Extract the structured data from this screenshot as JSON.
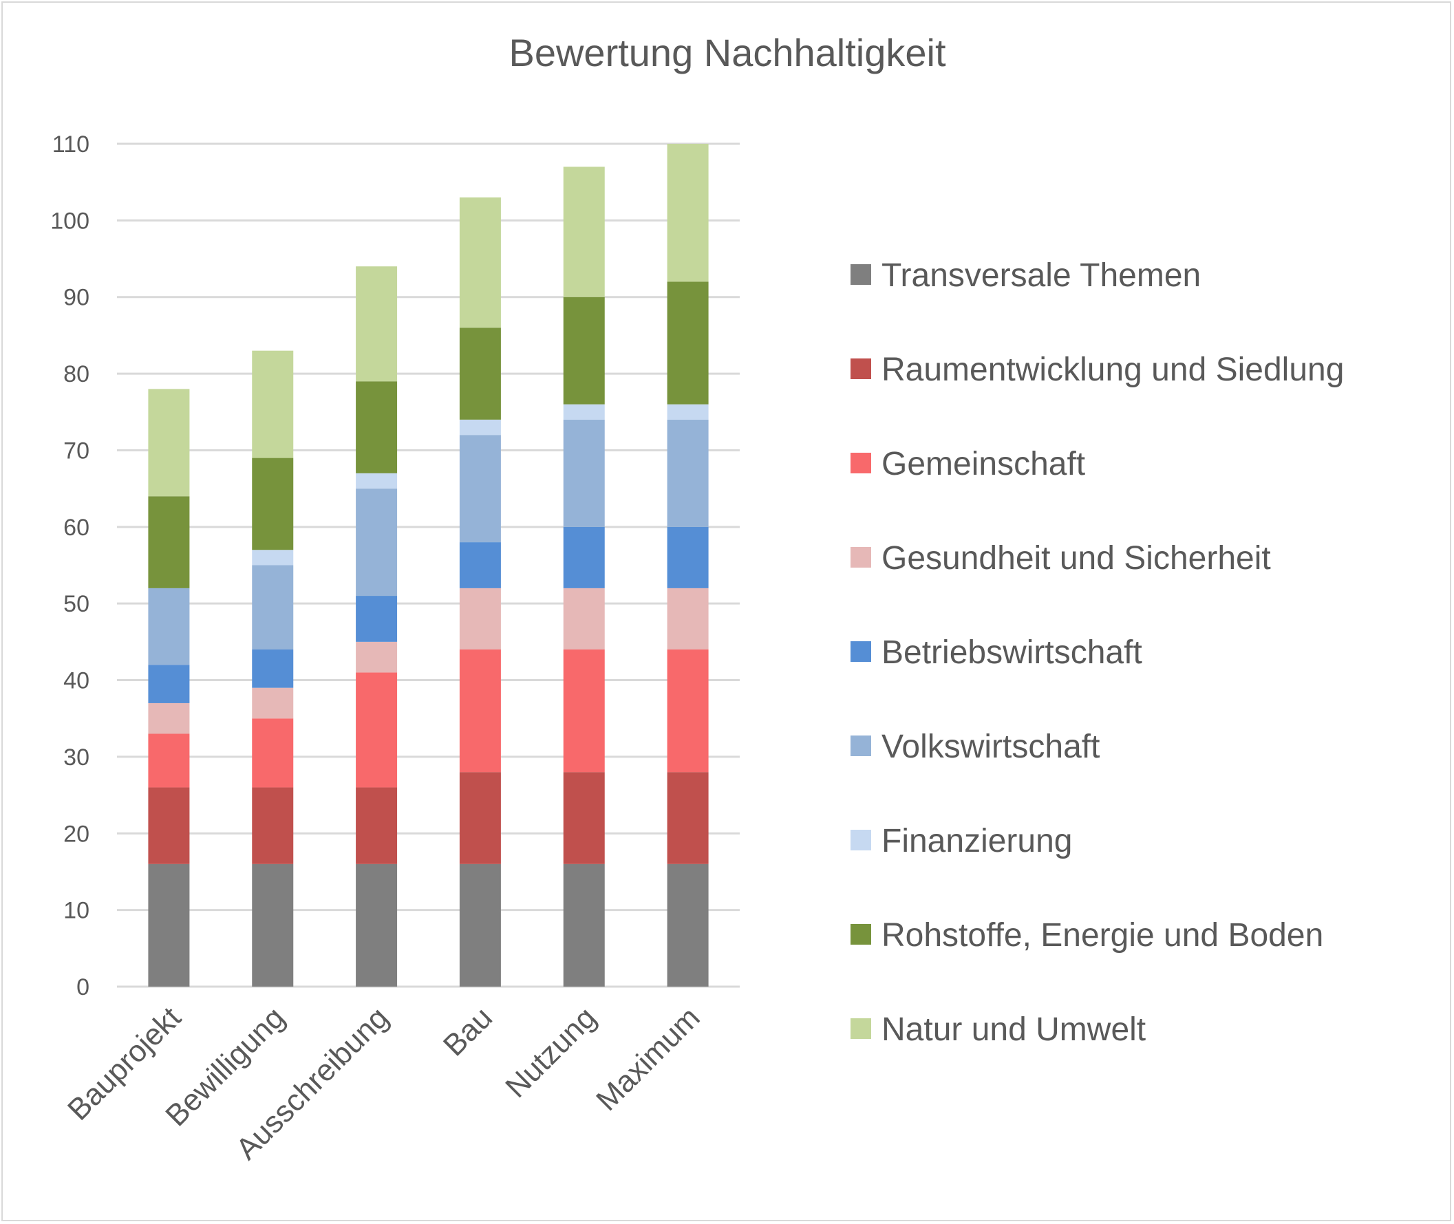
{
  "chart_data": {
    "type": "bar",
    "stacked": true,
    "title": "Bewertung Nachhaltigkeit",
    "xlabel": "",
    "ylabel": "",
    "ylim": [
      0,
      110
    ],
    "yticks": [
      0,
      10,
      20,
      30,
      40,
      50,
      60,
      70,
      80,
      90,
      100,
      110
    ],
    "grid": true,
    "legend_position": "right",
    "categories": [
      "Bauprojekt",
      "Bewilligung",
      "Ausschreibung",
      "Bau",
      "Nutzung",
      "Maximum"
    ],
    "series": [
      {
        "name": "Transversale Themen",
        "color": "#7f7f7f",
        "values": [
          16,
          16,
          16,
          16,
          16,
          16
        ]
      },
      {
        "name": "Raumentwicklung und Siedlung",
        "color": "#c0504d",
        "values": [
          10,
          10,
          10,
          12,
          12,
          12
        ]
      },
      {
        "name": "Gemeinschaft",
        "color": "#f8696b",
        "values": [
          7,
          9,
          15,
          16,
          16,
          16
        ]
      },
      {
        "name": "Gesundheit und Sicherheit",
        "color": "#e6b8b7",
        "values": [
          4,
          4,
          4,
          8,
          8,
          8
        ]
      },
      {
        "name": "Betriebswirtschaft",
        "color": "#558ed5",
        "values": [
          5,
          5,
          6,
          6,
          8,
          8
        ]
      },
      {
        "name": "Volkswirtschaft",
        "color": "#95b3d7",
        "values": [
          10,
          11,
          14,
          14,
          14,
          14
        ]
      },
      {
        "name": "Finanzierung",
        "color": "#c6d9f1",
        "values": [
          0,
          2,
          2,
          2,
          2,
          2
        ]
      },
      {
        "name": "Rohstoffe, Energie und Boden",
        "color": "#77933c",
        "values": [
          12,
          12,
          12,
          12,
          14,
          16
        ]
      },
      {
        "name": "Natur und Umwelt",
        "color": "#c4d79b",
        "values": [
          14,
          14,
          15,
          17,
          17,
          18
        ]
      }
    ]
  }
}
